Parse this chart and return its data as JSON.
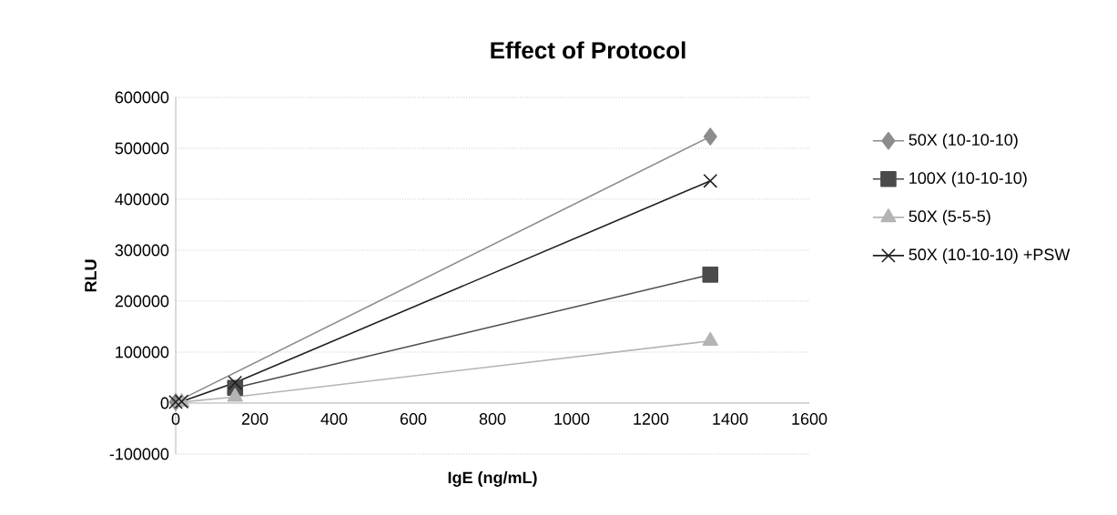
{
  "chart_data": {
    "type": "line",
    "title": "Effect of Protocol",
    "xlabel": "IgE (ng/mL)",
    "ylabel": "RLU",
    "x": [
      0,
      15,
      150,
      1350
    ],
    "series": [
      {
        "name": "50X (10-10-10)",
        "color": "#8c8c8c",
        "marker": "diamond",
        "values": [
          2000,
          null,
          null,
          523000
        ]
      },
      {
        "name": "100X (10-10-10)",
        "color": "#4a4a4a",
        "marker": "square",
        "values": [
          null,
          null,
          30000,
          252000
        ]
      },
      {
        "name": "50X (5-5-5)",
        "color": "#b4b4b4",
        "marker": "triangle",
        "values": [
          null,
          2000,
          12000,
          122000
        ]
      },
      {
        "name": "50X (10-10-10) +PSW",
        "color": "#202020",
        "marker": "cross",
        "values": [
          2000,
          3000,
          40000,
          436000
        ]
      }
    ],
    "xlim": [
      0,
      1600
    ],
    "xticks": [
      0,
      200,
      400,
      600,
      800,
      1000,
      1200,
      1400,
      1600
    ],
    "ylim": [
      -100000,
      600000
    ],
    "yticks": [
      -100000,
      0,
      100000,
      200000,
      300000,
      400000,
      500000,
      600000
    ],
    "grid": "y",
    "legend": "right"
  }
}
